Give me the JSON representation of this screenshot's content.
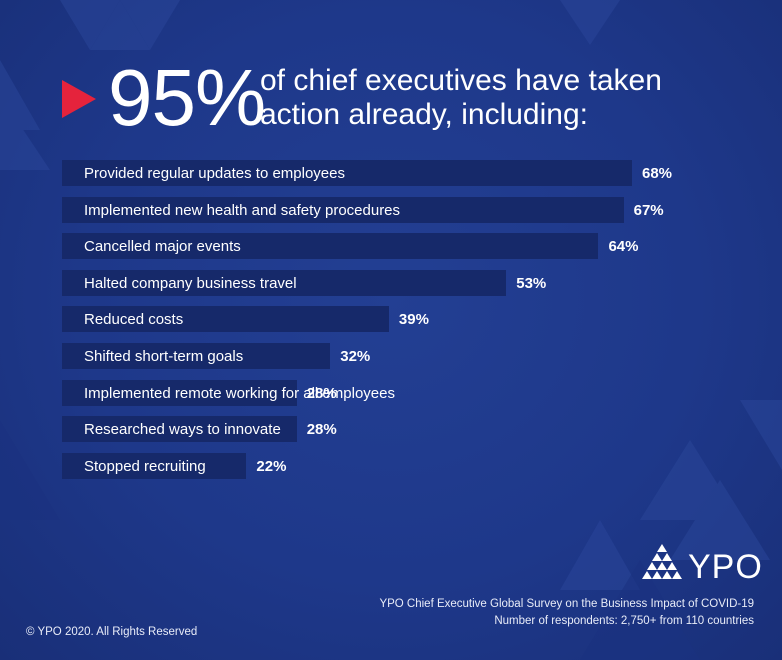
{
  "headline": {
    "percent": "95%",
    "text": "of chief executives have taken action already, including:",
    "arrow_color": "#e5233c"
  },
  "chart_data": {
    "type": "bar",
    "orientation": "horizontal",
    "title": "95% of chief executives have taken action already, including:",
    "categories": [
      "Provided regular updates to employees",
      "Implemented new health and safety procedures",
      "Cancelled major events",
      "Halted company business travel",
      "Reduced costs",
      "Shifted short-term goals",
      "Implemented remote working for all employees",
      "Researched ways to innovate",
      "Stopped recruiting"
    ],
    "values": [
      68,
      67,
      64,
      53,
      39,
      32,
      28,
      28,
      22
    ],
    "value_labels": [
      "68%",
      "67%",
      "64%",
      "53%",
      "39%",
      "32%",
      "28%",
      "28%",
      "22%"
    ],
    "unit": "%",
    "bar_color": "#16296a",
    "xlabel": "",
    "ylabel": ""
  },
  "logo": {
    "text": "YPO",
    "icon": "ypo-triangle-logo-icon"
  },
  "source": {
    "line1": "YPO Chief Executive Global Survey on the Business Impact of COVID-19",
    "line2": "Number of respondents: 2,750+  from 110 countries"
  },
  "copyright": "© YPO 2020. All Rights Reserved"
}
